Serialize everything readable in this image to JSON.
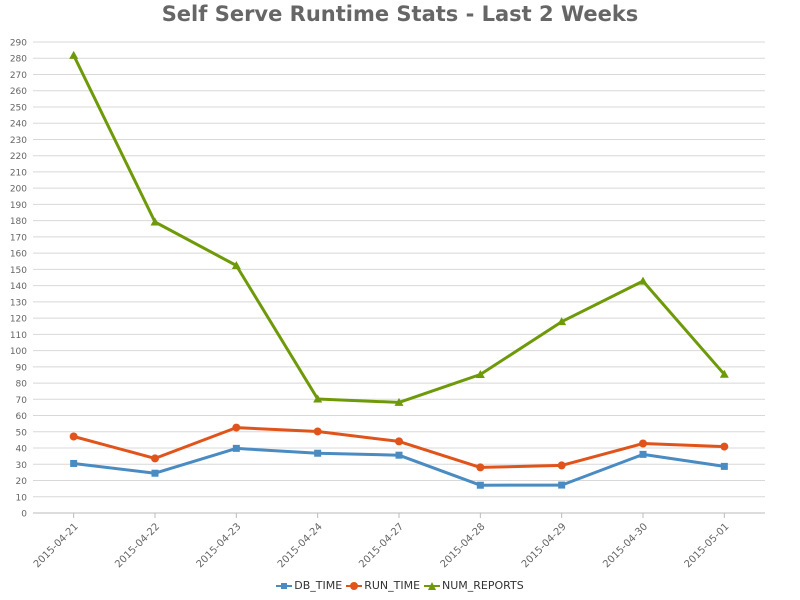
{
  "chart_data": {
    "type": "line",
    "title": "Self Serve Runtime Stats - Last 2 Weeks",
    "categories": [
      "2015-04-21",
      "2015-04-22",
      "2015-04-23",
      "2015-04-24",
      "2015-04-27",
      "2015-04-28",
      "2015-04-29",
      "2015-04-30",
      "2015-05-01"
    ],
    "series": [
      {
        "name": "DB_TIME",
        "color": "#4a8bc2",
        "marker": "square",
        "values": [
          30.5,
          24.5,
          39.8,
          36.8,
          35.6,
          17.1,
          17.2,
          36.1,
          28.7
        ]
      },
      {
        "name": "RUN_TIME",
        "color": "#e0541b",
        "marker": "circle",
        "values": [
          47.1,
          33.6,
          52.6,
          50.2,
          44.1,
          28.1,
          29.3,
          42.8,
          40.9
        ]
      },
      {
        "name": "NUM_REPORTS",
        "color": "#6e9a0a",
        "marker": "triangle",
        "values": [
          281.8,
          179.2,
          152.4,
          70.2,
          68.1,
          85.3,
          117.8,
          142.8,
          85.4
        ]
      }
    ],
    "ylim": [
      0,
      290
    ],
    "ytick_step": 10,
    "xlabel": "",
    "ylabel": "",
    "grid": true,
    "legend_position": "bottom"
  }
}
